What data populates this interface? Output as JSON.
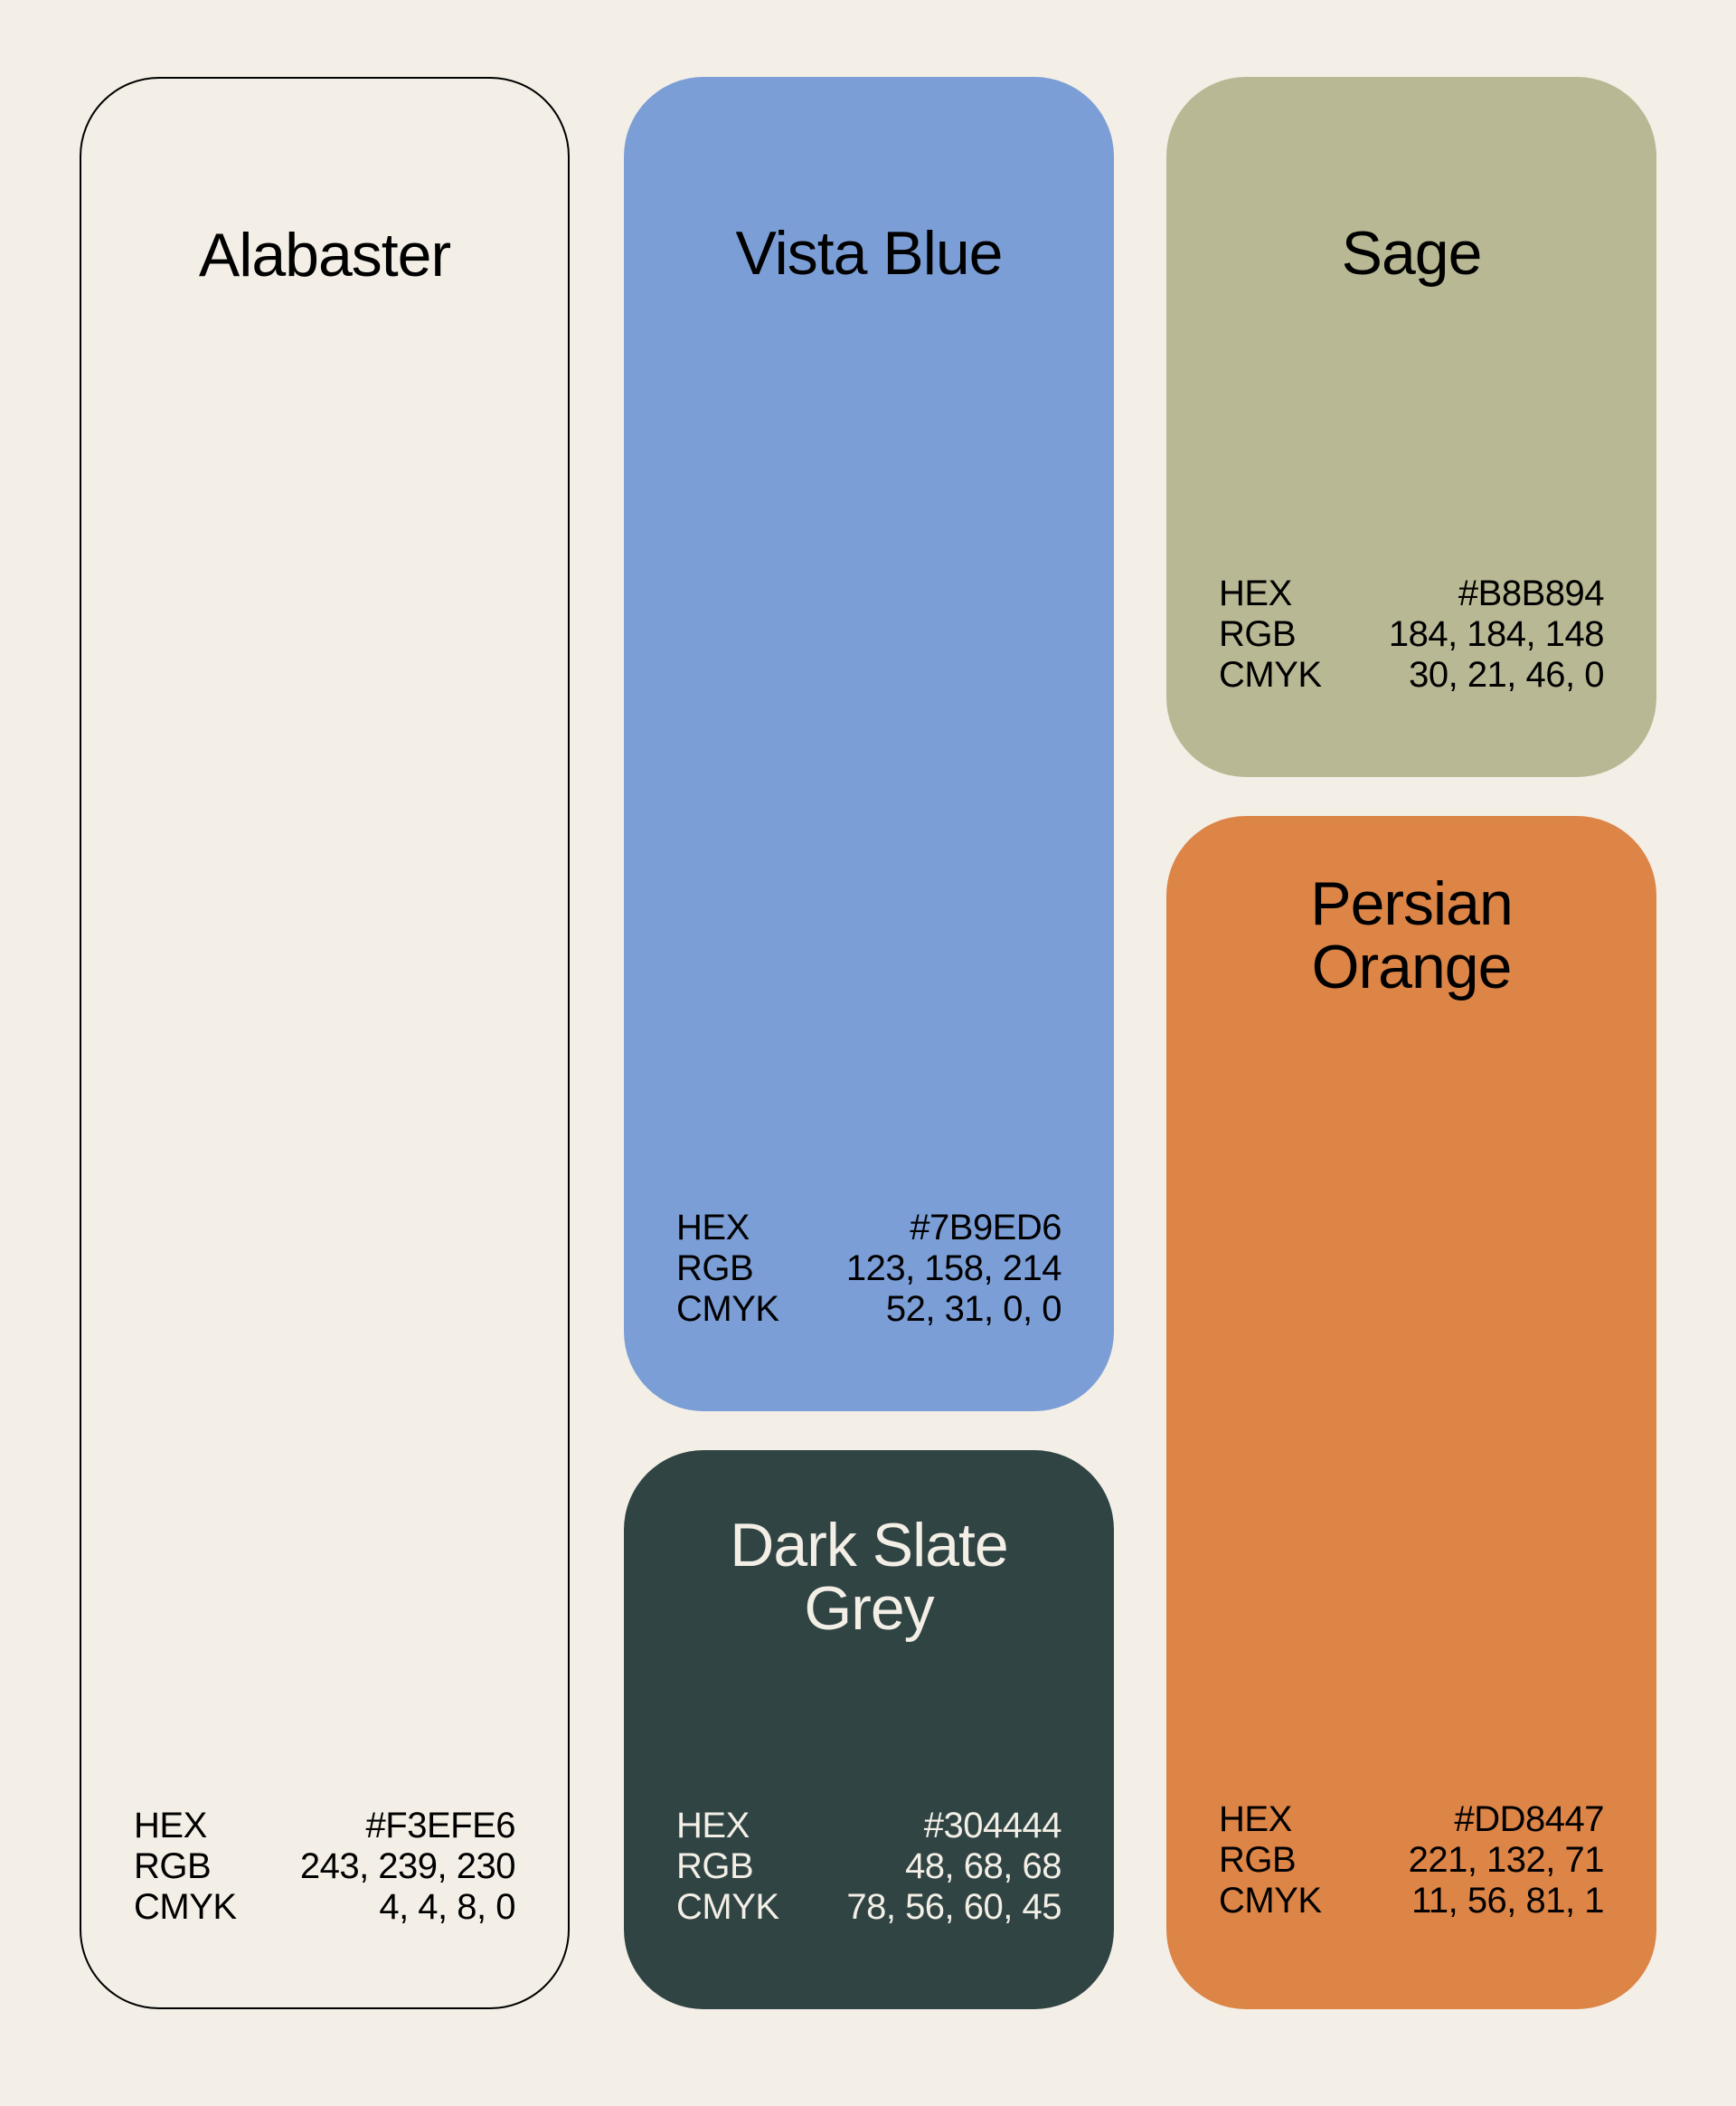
{
  "palette": {
    "labels": {
      "hex": "HEX",
      "rgb": "RGB",
      "cmyk": "CMYK"
    },
    "swatches": [
      {
        "name_lines": [
          "Alabaster"
        ],
        "hex": "#F3EFE6",
        "rgb": "243, 239, 230",
        "cmyk": "4, 4, 8, 0",
        "color": "#F3EFE6"
      },
      {
        "name_lines": [
          "Vista Blue"
        ],
        "hex": "#7B9ED6",
        "rgb": "123, 158, 214",
        "cmyk": "52, 31, 0, 0",
        "color": "#7B9ED6"
      },
      {
        "name_lines": [
          "Dark Slate",
          "Grey"
        ],
        "hex": "#304444",
        "rgb": "48, 68, 68",
        "cmyk": "78, 56, 60, 45",
        "color": "#304444"
      },
      {
        "name_lines": [
          "Sage"
        ],
        "hex": "#B8B894",
        "rgb": "184, 184, 148",
        "cmyk": "30, 21, 46, 0",
        "color": "#B8B894"
      },
      {
        "name_lines": [
          "Persian",
          "Orange"
        ],
        "hex": "#DD8447",
        "rgb": "221, 132, 71",
        "cmyk": "11, 56, 81, 1",
        "color": "#DD8447"
      }
    ]
  }
}
